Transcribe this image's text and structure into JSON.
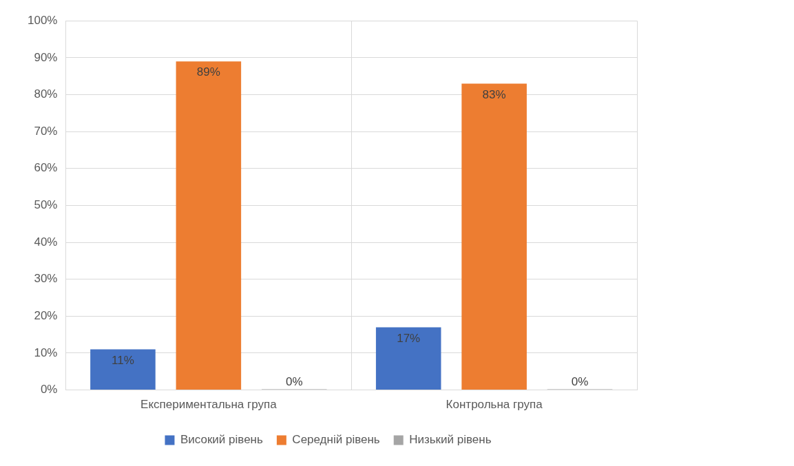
{
  "chart_data": {
    "type": "bar",
    "categories": [
      "Експериментальна група",
      "Контрольна група"
    ],
    "series": [
      {
        "name": "Високий рівень",
        "color": "#4472c4",
        "values": [
          11,
          17
        ],
        "value_labels": [
          "11%",
          "17%"
        ]
      },
      {
        "name": "Середній рівень",
        "color": "#ed7d31",
        "values": [
          89,
          83
        ],
        "value_labels": [
          "89%",
          "83%"
        ]
      },
      {
        "name": "Низький рівень",
        "color": "#a5a5a5",
        "values": [
          0,
          0
        ],
        "value_labels": [
          "0%",
          "0%"
        ]
      }
    ],
    "ylim": [
      0,
      100
    ],
    "yticks": [
      {
        "value": 0,
        "label": "0%"
      },
      {
        "value": 10,
        "label": "10%"
      },
      {
        "value": 20,
        "label": "20%"
      },
      {
        "value": 30,
        "label": "30%"
      },
      {
        "value": 40,
        "label": "40%"
      },
      {
        "value": 50,
        "label": "50%"
      },
      {
        "value": 60,
        "label": "60%"
      },
      {
        "value": 70,
        "label": "70%"
      },
      {
        "value": 80,
        "label": "80%"
      },
      {
        "value": 90,
        "label": "90%"
      },
      {
        "value": 100,
        "label": "100%"
      }
    ],
    "grid": true,
    "legend": "bottom"
  }
}
